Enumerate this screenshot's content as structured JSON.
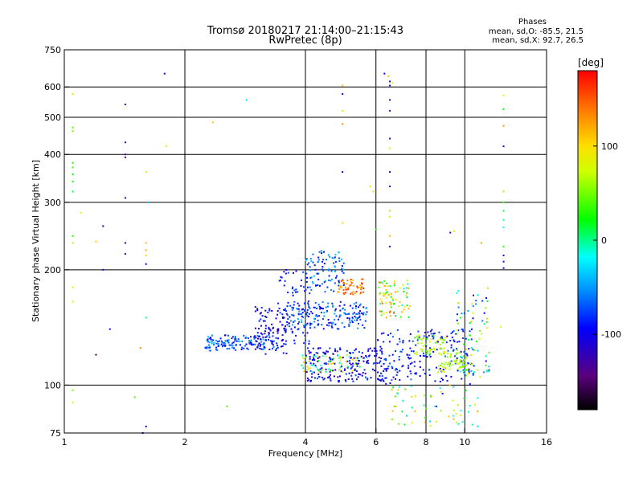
{
  "chart_data": {
    "type": "scatter",
    "title": "Tromsø 20180217 21:14:00–21:15:43",
    "subtitle": "RwPretec (8p)",
    "info": {
      "title": "Phases",
      "line_o": "mean, sd,O: -85.5, 21.5",
      "line_x": "mean, sd,X:  92.7, 26.5"
    },
    "xlabel": "Frequency [MHz]",
    "ylabel": "Stationary phase Virtual Height [km]",
    "xscale": "log",
    "yscale": "log",
    "xlim": [
      1,
      16
    ],
    "ylim": [
      75,
      750
    ],
    "xticks": [
      1,
      2,
      4,
      6,
      8,
      10,
      16
    ],
    "yticks": [
      75,
      100,
      200,
      300,
      400,
      500,
      600,
      750
    ],
    "vgrid": [
      2,
      4,
      6,
      8,
      10
    ],
    "hgrid": [
      100,
      200,
      300,
      400,
      500,
      600
    ],
    "colorbar": {
      "label": "[deg]",
      "min": -180,
      "max": 180,
      "ticks": [
        100,
        0,
        -100
      ],
      "tick_labels": [
        "100",
        "0",
        "-100"
      ]
    },
    "points": [
      {
        "f": 1.05,
        "h": 575,
        "p": 90
      },
      {
        "f": 1.05,
        "h": 470,
        "p": 40
      },
      {
        "f": 1.05,
        "h": 460,
        "p": 45
      },
      {
        "f": 1.05,
        "h": 380,
        "p": 30
      },
      {
        "f": 1.05,
        "h": 370,
        "p": 35
      },
      {
        "f": 1.05,
        "h": 355,
        "p": 20
      },
      {
        "f": 1.05,
        "h": 340,
        "p": 25
      },
      {
        "f": 1.05,
        "h": 320,
        "p": 10
      },
      {
        "f": 1.05,
        "h": 245,
        "p": 30
      },
      {
        "f": 1.05,
        "h": 235,
        "p": 60
      },
      {
        "f": 1.05,
        "h": 180,
        "p": 90
      },
      {
        "f": 1.05,
        "h": 165,
        "p": 70
      },
      {
        "f": 1.05,
        "h": 97,
        "p": 50
      },
      {
        "f": 1.05,
        "h": 90,
        "p": 85
      },
      {
        "f": 1.1,
        "h": 282,
        "p": 80
      },
      {
        "f": 1.2,
        "h": 120,
        "p": -150
      },
      {
        "f": 1.2,
        "h": 237,
        "p": 110
      },
      {
        "f": 1.25,
        "h": 260,
        "p": -120
      },
      {
        "f": 1.25,
        "h": 200,
        "p": -100
      },
      {
        "f": 1.3,
        "h": 140,
        "p": -110
      },
      {
        "f": 1.42,
        "h": 540,
        "p": -120
      },
      {
        "f": 1.42,
        "h": 430,
        "p": -110
      },
      {
        "f": 1.42,
        "h": 400,
        "p": -140
      },
      {
        "f": 1.42,
        "h": 393,
        "p": -130
      },
      {
        "f": 1.42,
        "h": 308,
        "p": -120
      },
      {
        "f": 1.42,
        "h": 235,
        "p": -115
      },
      {
        "f": 1.42,
        "h": 220,
        "p": -125
      },
      {
        "f": 1.5,
        "h": 93,
        "p": 40
      },
      {
        "f": 1.55,
        "h": 125,
        "p": 130
      },
      {
        "f": 1.6,
        "h": 360,
        "p": 80
      },
      {
        "f": 1.6,
        "h": 235,
        "p": 110
      },
      {
        "f": 1.6,
        "h": 225,
        "p": 120
      },
      {
        "f": 1.6,
        "h": 218,
        "p": 100
      },
      {
        "f": 1.6,
        "h": 207,
        "p": -100
      },
      {
        "f": 1.6,
        "h": 150,
        "p": 0
      },
      {
        "f": 1.6,
        "h": 78,
        "p": -110
      },
      {
        "f": 1.62,
        "h": 300,
        "p": -40
      },
      {
        "f": 1.57,
        "h": 75,
        "p": -120
      },
      {
        "f": 1.78,
        "h": 650,
        "p": -120
      },
      {
        "f": 1.8,
        "h": 420,
        "p": 80
      },
      {
        "f": 2.35,
        "h": 485,
        "p": 110
      },
      {
        "f": 2.55,
        "h": 88,
        "p": 40
      },
      {
        "f": 2.85,
        "h": 555,
        "p": -30
      },
      {
        "f": 3.0,
        "h": 160,
        "p": -90
      },
      {
        "f": 4.95,
        "h": 605,
        "p": 110
      },
      {
        "f": 4.95,
        "h": 575,
        "p": -100
      },
      {
        "f": 4.95,
        "h": 520,
        "p": 70
      },
      {
        "f": 4.95,
        "h": 480,
        "p": 130
      },
      {
        "f": 4.95,
        "h": 360,
        "p": -120
      },
      {
        "f": 4.95,
        "h": 265,
        "p": 100
      },
      {
        "f": 5.8,
        "h": 330,
        "p": 70
      },
      {
        "f": 5.9,
        "h": 320,
        "p": 80
      },
      {
        "f": 6.0,
        "h": 255,
        "p": 30
      },
      {
        "f": 6.3,
        "h": 650,
        "p": -100
      },
      {
        "f": 6.45,
        "h": 640,
        "p": 110
      },
      {
        "f": 6.5,
        "h": 620,
        "p": -100
      },
      {
        "f": 6.5,
        "h": 605,
        "p": -110
      },
      {
        "f": 6.5,
        "h": 555,
        "p": -120
      },
      {
        "f": 6.5,
        "h": 520,
        "p": -130
      },
      {
        "f": 6.5,
        "h": 440,
        "p": -110
      },
      {
        "f": 6.5,
        "h": 415,
        "p": 80
      },
      {
        "f": 6.5,
        "h": 360,
        "p": -120
      },
      {
        "f": 6.5,
        "h": 330,
        "p": -100
      },
      {
        "f": 6.5,
        "h": 285,
        "p": 60
      },
      {
        "f": 6.5,
        "h": 275,
        "p": 70
      },
      {
        "f": 6.5,
        "h": 245,
        "p": 110
      },
      {
        "f": 6.5,
        "h": 230,
        "p": -110
      },
      {
        "f": 6.6,
        "h": 615,
        "p": 90
      },
      {
        "f": 8.8,
        "h": 95,
        "p": -110
      },
      {
        "f": 8.5,
        "h": 88,
        "p": -100
      },
      {
        "f": 9.2,
        "h": 250,
        "p": -130
      },
      {
        "f": 9.4,
        "h": 252,
        "p": 80
      },
      {
        "f": 11.0,
        "h": 235,
        "p": 120
      },
      {
        "f": 12.5,
        "h": 570,
        "p": 80
      },
      {
        "f": 12.5,
        "h": 525,
        "p": 20
      },
      {
        "f": 12.5,
        "h": 475,
        "p": 130
      },
      {
        "f": 12.5,
        "h": 420,
        "p": -90
      },
      {
        "f": 12.5,
        "h": 320,
        "p": 60
      },
      {
        "f": 12.5,
        "h": 300,
        "p": 30
      },
      {
        "f": 12.5,
        "h": 285,
        "p": 10
      },
      {
        "f": 12.5,
        "h": 270,
        "p": 0
      },
      {
        "f": 12.5,
        "h": 258,
        "p": -20
      },
      {
        "f": 12.5,
        "h": 230,
        "p": 30
      },
      {
        "f": 12.5,
        "h": 218,
        "p": -110
      },
      {
        "f": 12.5,
        "h": 210,
        "p": -100
      },
      {
        "f": 12.5,
        "h": 202,
        "p": -90
      },
      {
        "f": 12.3,
        "h": 142,
        "p": 70
      }
    ],
    "clusters": [
      {
        "n": 150,
        "f": [
          2.25,
          3.4
        ],
        "h": [
          123,
          135
        ],
        "p": [
          -110,
          -40
        ],
        "seed": 11
      },
      {
        "n": 80,
        "f": [
          3.0,
          3.6
        ],
        "h": [
          120,
          160
        ],
        "p": [
          -120,
          -80
        ],
        "seed": 12
      },
      {
        "n": 80,
        "f": [
          3.4,
          4.1
        ],
        "h": [
          128,
          200
        ],
        "p": [
          -120,
          -70
        ],
        "seed": 13
      },
      {
        "n": 180,
        "f": [
          3.6,
          5.7
        ],
        "h": [
          140,
          165
        ],
        "p": [
          -110,
          -40
        ],
        "seed": 14
      },
      {
        "n": 90,
        "f": [
          4.0,
          5.0
        ],
        "h": [
          175,
          225
        ],
        "p": [
          -100,
          -30
        ],
        "seed": 15
      },
      {
        "n": 50,
        "f": [
          4.8,
          5.6
        ],
        "h": [
          172,
          190
        ],
        "p": [
          110,
          170
        ],
        "seed": 16
      },
      {
        "n": 200,
        "f": [
          4.0,
          6.4
        ],
        "h": [
          102,
          125
        ],
        "p": [
          -130,
          -70
        ],
        "seed": 17
      },
      {
        "n": 60,
        "f": [
          3.9,
          5.5
        ],
        "h": [
          108,
          120
        ],
        "p": [
          -40,
          130
        ],
        "seed": 18
      },
      {
        "n": 80,
        "f": [
          6.1,
          7.3
        ],
        "h": [
          150,
          188
        ],
        "p": [
          -20,
          150
        ],
        "seed": 19
      },
      {
        "n": 200,
        "f": [
          6.0,
          10.5
        ],
        "h": [
          100,
          140
        ],
        "p": [
          -120,
          -60
        ],
        "seed": 20
      },
      {
        "n": 60,
        "f": [
          8.5,
          10.5
        ],
        "h": [
          108,
          122
        ],
        "p": [
          50,
          80
        ],
        "seed": 21
      },
      {
        "n": 50,
        "f": [
          7.5,
          9.0
        ],
        "h": [
          120,
          135
        ],
        "p": [
          30,
          100
        ],
        "seed": 22
      },
      {
        "n": 80,
        "f": [
          9.5,
          11.5
        ],
        "h": [
          105,
          180
        ],
        "p": [
          -120,
          120
        ],
        "seed": 23
      },
      {
        "n": 60,
        "f": [
          6.5,
          11.0
        ],
        "h": [
          78,
          100
        ],
        "p": [
          -40,
          120
        ],
        "seed": 24
      }
    ]
  }
}
